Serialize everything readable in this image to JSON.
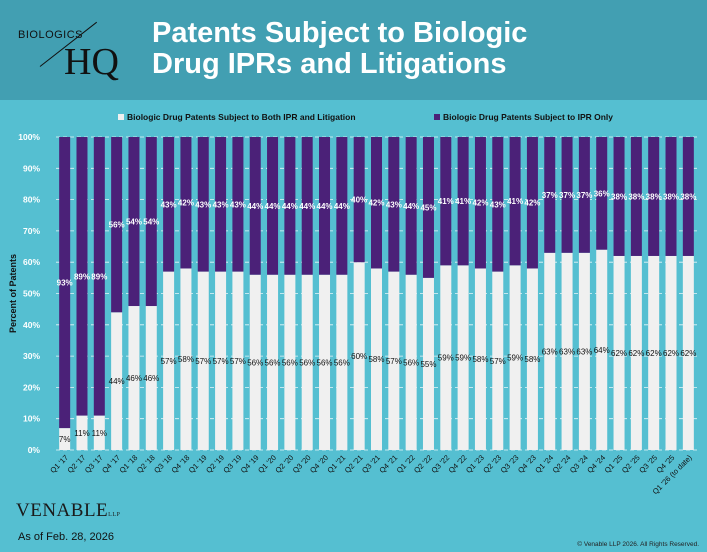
{
  "header": {
    "logo_top": "BIOLOGICS",
    "logo_bottom": "HQ",
    "title_line1": "Patents Subject to Biologic",
    "title_line2": "Drug IPRs and Litigations"
  },
  "footer": {
    "brand": "VENABLE",
    "brand_suffix": "LLP",
    "as_of": "As of Feb. 28, 2026",
    "copyright": "© Venable LLP 2026. All Rights Reserved."
  },
  "colors": {
    "header_bg": "#429fb2",
    "background": "#55bfd1",
    "both": "#f0f0f0",
    "ipr_only": "#4b2178"
  },
  "chart_data": {
    "type": "bar",
    "stacked": "100%",
    "ylabel": "Percent of Patents",
    "ylim": [
      0,
      100
    ],
    "yticks": [
      "0%",
      "10%",
      "20%",
      "30%",
      "40%",
      "50%",
      "60%",
      "70%",
      "80%",
      "90%",
      "100%"
    ],
    "grid": true,
    "legend_placement": "top",
    "categories": [
      "Q1 '17",
      "Q2 '17",
      "Q3 '17",
      "Q4 '17",
      "Q1 '18",
      "Q2 '18",
      "Q3 '18",
      "Q4 '18",
      "Q1 '19",
      "Q2 '19",
      "Q3 '19",
      "Q4 '19",
      "Q1 '20",
      "Q2 '20",
      "Q3 '20",
      "Q4 '20",
      "Q1 '21",
      "Q2 '21",
      "Q3 '21",
      "Q4 '21",
      "Q1 '22",
      "Q2 '22",
      "Q3 '22",
      "Q4 '22",
      "Q1 '23",
      "Q2 '23",
      "Q3 '23",
      "Q4 '23",
      "Q1 '24",
      "Q2 '24",
      "Q3 '24",
      "Q4 '24",
      "Q1 '25",
      "Q2 '25",
      "Q3 '25",
      "Q4 '25",
      "Q1 '26 (to date)"
    ],
    "series": [
      {
        "name": "Biologic Drug Patents Subject to Both IPR and Litigation",
        "color": "#f0f0f0",
        "values": [
          7,
          11,
          11,
          44,
          46,
          46,
          57,
          58,
          57,
          57,
          57,
          56,
          56,
          56,
          56,
          56,
          56,
          60,
          58,
          57,
          56,
          55,
          59,
          59,
          58,
          57,
          59,
          58,
          63,
          63,
          63,
          64,
          62,
          62,
          62,
          62,
          62
        ]
      },
      {
        "name": "Biologic Drug Patents Subject to IPR Only",
        "color": "#4b2178",
        "values": [
          93,
          89,
          89,
          56,
          54,
          54,
          43,
          42,
          43,
          43,
          43,
          44,
          44,
          44,
          44,
          44,
          44,
          40,
          42,
          43,
          44,
          45,
          41,
          41,
          42,
          43,
          41,
          42,
          37,
          37,
          37,
          36,
          38,
          38,
          38,
          38,
          38
        ]
      }
    ]
  }
}
